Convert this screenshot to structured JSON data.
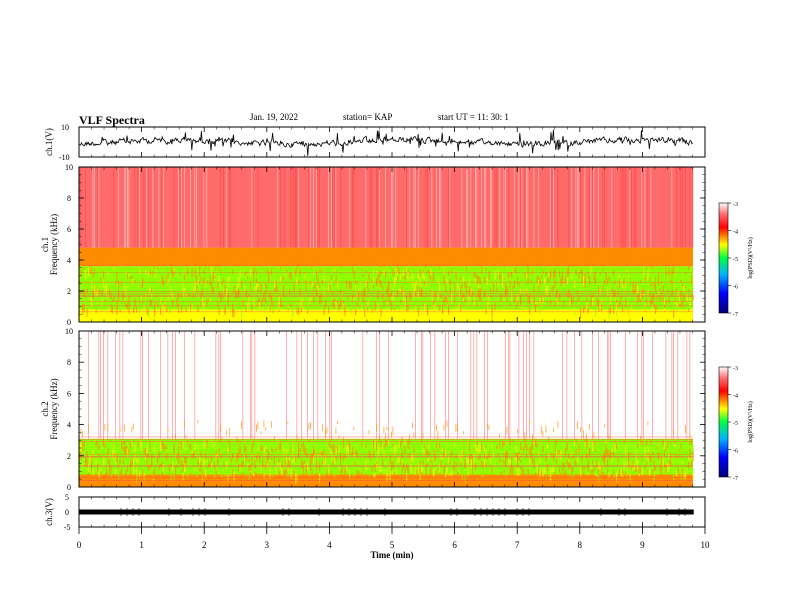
{
  "header": {
    "title": "VLF Spectra",
    "date": "Jan. 19, 2022",
    "station": "station= KAP",
    "start": "start  UT  =   11: 30: 1"
  },
  "chart_data": [
    {
      "type": "line",
      "title": "",
      "ylabel": "ch.1(V)",
      "ylim": [
        -10,
        10
      ],
      "yticks": [
        "10",
        "-10"
      ],
      "description_series": "waveform amplitude",
      "xlim": [
        0,
        10
      ]
    },
    {
      "type": "heatmap",
      "ylabel": "ch.1 Frequency (kHz)",
      "ylim": [
        0,
        10
      ],
      "yticks": [
        "0",
        "2",
        "4",
        "6",
        "8",
        "10"
      ],
      "xlim": [
        0,
        10
      ],
      "colorbar": {
        "label": "log(PSD)(V²/Hz)",
        "range": [
          -7,
          -3
        ],
        "ticks": [
          "-3",
          "-4",
          "-5",
          "-6",
          "-7"
        ]
      },
      "bands": [
        {
          "from": 0.0,
          "to": 0.8,
          "level": -4.6
        },
        {
          "from": 0.8,
          "to": 3.6,
          "level": -4.9
        },
        {
          "from": 3.6,
          "to": 4.8,
          "level": -4.2
        },
        {
          "from": 4.8,
          "to": 10.0,
          "level": -3.4
        }
      ]
    },
    {
      "type": "heatmap",
      "ylabel": "ch.2 Frequency (kHz)",
      "ylim": [
        0,
        10
      ],
      "yticks": [
        "0",
        "2",
        "4",
        "6",
        "8",
        "10"
      ],
      "xlim": [
        0,
        10
      ],
      "colorbar": {
        "label": "log(PSD)(V²/Hz)",
        "range": [
          -7,
          -3
        ],
        "ticks": [
          "-3",
          "-4",
          "-5",
          "-6",
          "-7"
        ]
      },
      "bands": [
        {
          "from": 0.0,
          "to": 0.8,
          "level": -4.4
        },
        {
          "from": 0.8,
          "to": 3.1,
          "level": -4.8
        },
        {
          "from": 3.1,
          "to": 10.0,
          "level": -3.2
        }
      ]
    },
    {
      "type": "line",
      "ylabel": "ch.3(V)",
      "ylim": [
        -5,
        5
      ],
      "yticks": [
        "5",
        "0",
        "-5"
      ],
      "xlim": [
        0,
        10
      ],
      "xlabel": "Time (min)",
      "xticks": [
        "0",
        "1",
        "2",
        "3",
        "4",
        "5",
        "6",
        "7",
        "8",
        "9",
        "10"
      ],
      "data_end_x": 9.82
    }
  ]
}
